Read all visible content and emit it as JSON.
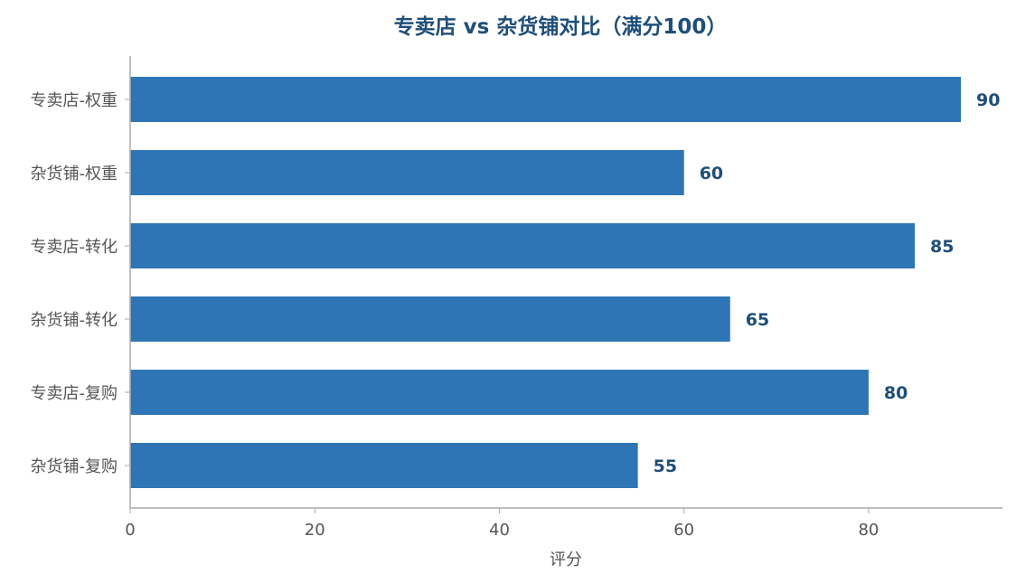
{
  "chart_data": {
    "type": "bar",
    "orientation": "horizontal",
    "title": "专卖店 vs 杂货铺对比（满分100）",
    "xlabel": "评分",
    "ylabel": "",
    "categories": [
      "专卖店-权重",
      "杂货铺-权重",
      "专卖店-转化",
      "杂货铺-转化",
      "专卖店-复购",
      "杂货铺-复购"
    ],
    "values": [
      90,
      60,
      85,
      65,
      80,
      55
    ],
    "data_labels": [
      "90",
      "60",
      "85",
      "65",
      "80",
      "55"
    ],
    "xlim": [
      0,
      94.5
    ],
    "xticks": [
      0,
      20,
      40,
      60,
      80
    ],
    "xtick_labels": [
      "0",
      "20",
      "40",
      "60",
      "80"
    ],
    "grid": false,
    "legend": "none",
    "colors": {
      "bar": "#2e75b6",
      "title": "#1f4e79",
      "data_label": "#1f4e79",
      "axis": "#aaaaaa",
      "tick_text": "#555555"
    }
  }
}
